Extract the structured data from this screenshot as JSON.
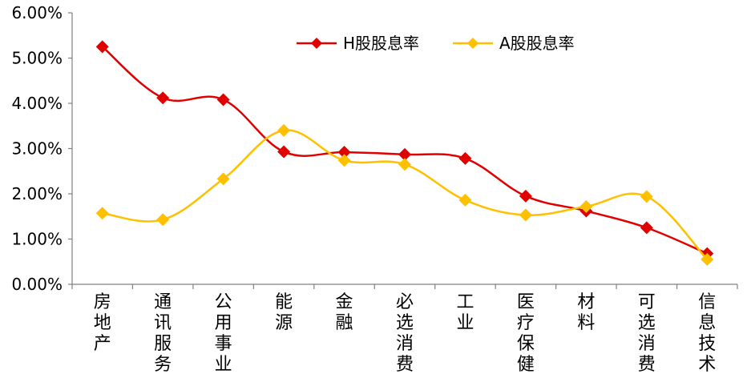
{
  "chart_data": {
    "type": "line",
    "categories": [
      "房地产",
      "通讯服务",
      "公用事业",
      "能源",
      "金融",
      "必选消费",
      "工业",
      "医疗保健",
      "材料",
      "可选消费",
      "信息技术"
    ],
    "series": [
      {
        "name": "H股股息率",
        "color": "#E00000",
        "values": [
          5.25,
          4.12,
          4.08,
          2.93,
          2.92,
          2.87,
          2.78,
          1.95,
          1.62,
          1.25,
          0.68
        ]
      },
      {
        "name": "A股股息率",
        "color": "#FFC000",
        "values": [
          1.57,
          1.43,
          2.33,
          3.4,
          2.74,
          2.65,
          1.86,
          1.53,
          1.72,
          1.94,
          0.55
        ]
      }
    ],
    "y_ticks": [
      "0.00%",
      "1.00%",
      "2.00%",
      "3.00%",
      "4.00%",
      "5.00%",
      "6.00%"
    ],
    "ylim": [
      0,
      6
    ],
    "legend_position": "top-center",
    "smooth_lines": true,
    "marker": "diamond",
    "grid": false
  }
}
